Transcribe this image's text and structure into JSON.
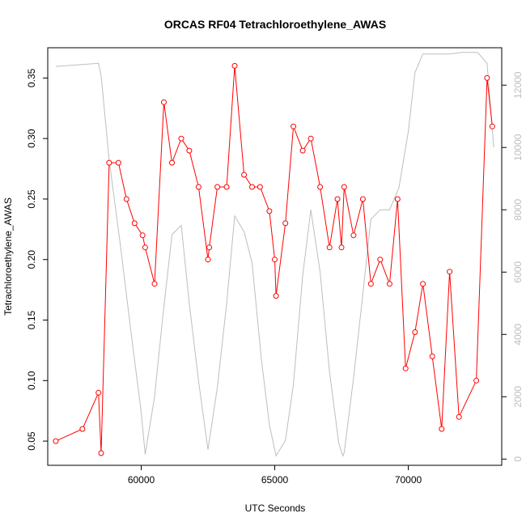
{
  "chart_data": {
    "type": "line",
    "title": "ORCAS RF04 Tetrachloroethylene_AWAS",
    "xlabel": "UTC Seconds",
    "ylabel": "Tetrachloroethylene_AWAS",
    "xlim": [
      56500,
      73500
    ],
    "ylim": [
      0.03,
      0.375
    ],
    "y2lim": [
      -200,
      13200
    ],
    "grid": false,
    "x_ticks": [
      60000,
      65000,
      70000
    ],
    "y_ticks": [
      0.05,
      0.1,
      0.15,
      0.2,
      0.25,
      0.3,
      0.35
    ],
    "y2_ticks": [
      0,
      2000,
      4000,
      6000,
      8000,
      10000,
      12000
    ],
    "x_tick_labels": [
      "60000",
      "65000",
      "70000"
    ],
    "y_tick_labels": [
      "0.05",
      "0.10",
      "0.15",
      "0.20",
      "0.25",
      "0.30",
      "0.35"
    ],
    "y2_tick_labels": [
      "0",
      "2000",
      "4000",
      "6000",
      "8000",
      "10000",
      "12000"
    ],
    "colors": {
      "primary": "#ff0000",
      "secondary": "#bebebe",
      "right_axis": "#bebebe"
    },
    "series": [
      {
        "axis": "left",
        "style": "line+points",
        "color": "#ff0000",
        "x": [
          56800,
          57800,
          58400,
          58500,
          58800,
          59150,
          59450,
          59750,
          60050,
          60150,
          60500,
          60850,
          61150,
          61500,
          61800,
          62150,
          62500,
          62550,
          62850,
          63200,
          63500,
          63850,
          64150,
          64450,
          64800,
          65000,
          65050,
          65400,
          65700,
          66050,
          66350,
          66700,
          67050,
          67350,
          67500,
          67600,
          67950,
          68300,
          68600,
          68950,
          69300,
          69600,
          69900,
          70250,
          70550,
          70900,
          71250,
          71550,
          71900,
          72550,
          72950,
          73150
        ],
        "y": [
          0.05,
          0.06,
          0.09,
          0.04,
          0.28,
          0.28,
          0.25,
          0.23,
          0.22,
          0.21,
          0.18,
          0.33,
          0.28,
          0.3,
          0.29,
          0.26,
          0.2,
          0.21,
          0.26,
          0.26,
          0.36,
          0.27,
          0.26,
          0.26,
          0.24,
          0.2,
          0.17,
          0.23,
          0.31,
          0.29,
          0.3,
          0.26,
          0.21,
          0.25,
          0.21,
          0.26,
          0.22,
          0.25,
          0.18,
          0.2,
          0.18,
          0.25,
          0.11,
          0.14,
          0.18,
          0.12,
          0.06,
          0.19,
          0.07,
          0.1,
          0.35,
          0.31
        ]
      },
      {
        "axis": "right",
        "style": "line",
        "color": "#bebebe",
        "x": [
          56800,
          58400,
          58500,
          58800,
          59200,
          59600,
          60000,
          60150,
          60500,
          60800,
          61150,
          61500,
          61800,
          62150,
          62500,
          62850,
          63200,
          63500,
          63850,
          64150,
          64500,
          64800,
          65050,
          65400,
          65700,
          66050,
          66350,
          66700,
          67050,
          67400,
          67550,
          67600,
          67950,
          68300,
          68600,
          68950,
          69300,
          69650,
          70000,
          70250,
          70550,
          70900,
          71250,
          71550,
          72000,
          72600,
          72950,
          73200
        ],
        "y": [
          12600,
          12700,
          12300,
          9600,
          7000,
          4200,
          1500,
          150,
          2000,
          4500,
          7200,
          7500,
          5000,
          2500,
          300,
          2300,
          5000,
          7800,
          7300,
          6300,
          3200,
          1100,
          100,
          600,
          2400,
          5900,
          8000,
          6000,
          2800,
          500,
          100,
          200,
          2600,
          5300,
          7700,
          8000,
          8000,
          8700,
          10500,
          12400,
          13000,
          13000,
          13000,
          13000,
          13050,
          13050,
          12700,
          10000
        ]
      }
    ]
  }
}
